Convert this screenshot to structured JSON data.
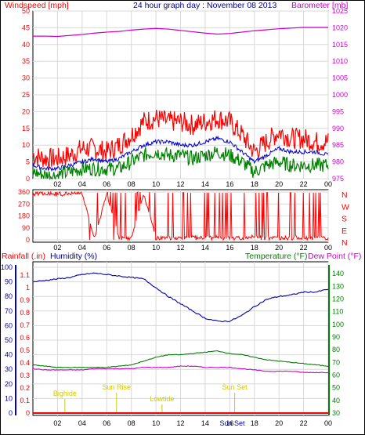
{
  "header": {
    "left": "Windspeed [mph]",
    "center": "24 hour graph day : November 08 2013",
    "right": "Barometer [mb]"
  },
  "lower_header": {
    "rain": "Rainfall (.in)",
    "humidity": "Humidity (%)",
    "temperature": "Temperature (°F)",
    "dewpoint": "Dew Point (°F)"
  },
  "colors": {
    "wind": "#ff0000",
    "gust_fill": "#ff0000",
    "avg_wind": "#0000cc",
    "green_wind": "#008000",
    "barometer": "#cc00cc",
    "direction": "#ff0000",
    "humidity": "#0000aa",
    "temperature": "#008000",
    "dewpoint": "#cc00cc",
    "rain": "#ff0000",
    "annotation": "#cccc00",
    "grid": "#d8d8d8"
  },
  "chart_data": [
    {
      "type": "line",
      "id": "wind",
      "title": "24 hour graph day : November 08 2013",
      "ylabel_left": "Windspeed [mph]",
      "ylabel_right": "Barometer [mb]",
      "x_ticks": [
        "02",
        "04",
        "06",
        "08",
        "10",
        "12",
        "14",
        "16",
        "18",
        "20",
        "22",
        "00"
      ],
      "y_left_ticks": [
        0,
        5,
        10,
        15,
        20,
        25,
        30,
        35,
        40,
        45,
        50
      ],
      "y_left_range": [
        0,
        50
      ],
      "y_right_ticks": [
        975,
        980,
        985,
        990,
        995,
        1000,
        1005,
        1010,
        1015,
        1020,
        1025
      ],
      "y_right_range": [
        975,
        1025
      ],
      "x_hours": [
        0,
        1,
        2,
        3,
        4,
        5,
        6,
        7,
        8,
        9,
        10,
        11,
        12,
        13,
        14,
        15,
        16,
        17,
        18,
        19,
        20,
        21,
        22,
        23,
        24
      ],
      "series": [
        {
          "role": "gust",
          "values": [
            7,
            6,
            6,
            7,
            9,
            9,
            8,
            10,
            13,
            17,
            18,
            17,
            17,
            16,
            17,
            18,
            17,
            13,
            8,
            11,
            14,
            12,
            12,
            11,
            11
          ]
        },
        {
          "role": "average",
          "values": [
            4,
            3,
            3,
            4,
            5,
            6,
            5,
            6,
            8,
            10,
            11,
            11,
            10,
            10,
            11,
            12,
            11,
            8,
            5,
            7,
            9,
            8,
            8,
            8,
            7
          ]
        },
        {
          "role": "lull",
          "values": [
            2,
            1,
            1,
            2,
            3,
            3,
            3,
            3,
            5,
            7,
            8,
            7,
            7,
            6,
            7,
            8,
            7,
            5,
            2,
            4,
            5,
            4,
            4,
            4,
            4
          ]
        },
        {
          "role": "barometer",
          "values": [
            1017.5,
            1017.5,
            1017.4,
            1017.7,
            1018.0,
            1018.4,
            1018.7,
            1018.9,
            1019.3,
            1019.6,
            1019.8,
            1019.6,
            1019.2,
            1018.8,
            1018.4,
            1018.1,
            1018.3,
            1018.7,
            1019.1,
            1019.4,
            1019.7,
            1019.9,
            1020.1,
            1020.1,
            1020.1
          ]
        }
      ]
    },
    {
      "type": "line",
      "id": "direction",
      "y_ticks": [
        0,
        90,
        180,
        270,
        360
      ],
      "y_range": [
        0,
        360
      ],
      "compass": [
        "N",
        "W",
        "S",
        "E",
        "N"
      ],
      "x_ticks": [
        "02",
        "04",
        "06",
        "08",
        "10",
        "12",
        "14",
        "16",
        "18",
        "20",
        "22",
        "00"
      ],
      "x_hours": [
        0,
        1,
        2,
        3,
        4,
        5,
        6,
        7,
        8,
        9,
        10,
        11,
        12,
        13,
        14,
        15,
        16,
        17,
        18,
        19,
        20,
        21,
        22,
        23,
        24
      ],
      "values": [
        340,
        345,
        335,
        345,
        350,
        10,
        345,
        15,
        20,
        345,
        20,
        15,
        15,
        20,
        15,
        20,
        15,
        15,
        25,
        20,
        15,
        20,
        15,
        20,
        15
      ]
    },
    {
      "type": "line",
      "id": "humidity_temp",
      "y_left_ticks": [
        0,
        10,
        20,
        30,
        40,
        50,
        60,
        70,
        80,
        90,
        100
      ],
      "y_left_range": [
        0,
        100
      ],
      "y_rain_ticks": [
        "0",
        "0.1",
        "0.2",
        "0.3",
        "0.4",
        "0.5",
        "0.6",
        "0.7",
        "0.8",
        "0.9",
        "1",
        "1.1"
      ],
      "y_rain_range": [
        0,
        1.1
      ],
      "y_right_ticks": [
        30,
        40,
        50,
        60,
        70,
        80,
        90,
        100,
        110,
        120,
        130,
        140
      ],
      "y_right_range": [
        30,
        145
      ],
      "x_ticks": [
        "02",
        "04",
        "06",
        "08",
        "10",
        "12",
        "14",
        "16",
        "18",
        "20",
        "22",
        "00"
      ],
      "x_hours": [
        0,
        1,
        2,
        3,
        4,
        5,
        6,
        7,
        8,
        9,
        10,
        11,
        12,
        13,
        14,
        15,
        16,
        17,
        18,
        19,
        20,
        21,
        22,
        23,
        24
      ],
      "series": [
        {
          "name": "Humidity (%)",
          "values": [
            90,
            91,
            92,
            93,
            95,
            96,
            95,
            94,
            93,
            92,
            86,
            80,
            75,
            70,
            65,
            63,
            63,
            67,
            73,
            78,
            80,
            81,
            83,
            83,
            85
          ]
        },
        {
          "name": "Temperature (°F)",
          "values": [
            68,
            67,
            66,
            66,
            66,
            66,
            66,
            67,
            68,
            71,
            74,
            76,
            76,
            77,
            78,
            79,
            77,
            76,
            74,
            72,
            71,
            70,
            69,
            68,
            67
          ]
        },
        {
          "name": "Dew Point (°F)",
          "values": [
            65,
            64,
            64,
            64,
            64,
            65,
            65,
            65,
            65,
            66,
            66,
            66,
            67,
            67,
            66,
            66,
            66,
            65,
            64,
            63,
            63,
            63,
            62,
            62,
            62
          ]
        },
        {
          "name": "Rainfall (.in)",
          "values": [
            0,
            0,
            0,
            0,
            0,
            0,
            0,
            0,
            0,
            0,
            0,
            0,
            0,
            0,
            0,
            0,
            0,
            0,
            0,
            0,
            0,
            0,
            0,
            0,
            0
          ]
        }
      ],
      "annotations": [
        {
          "label": "Bighide",
          "hour": 2.6
        },
        {
          "label": "Sun Rise",
          "hour": 6.8
        },
        {
          "label": "Lowtide",
          "hour": 10.5
        },
        {
          "label": "Sun Set",
          "hour": 16.4
        }
      ],
      "x_extra_label": "Sun Set"
    }
  ]
}
